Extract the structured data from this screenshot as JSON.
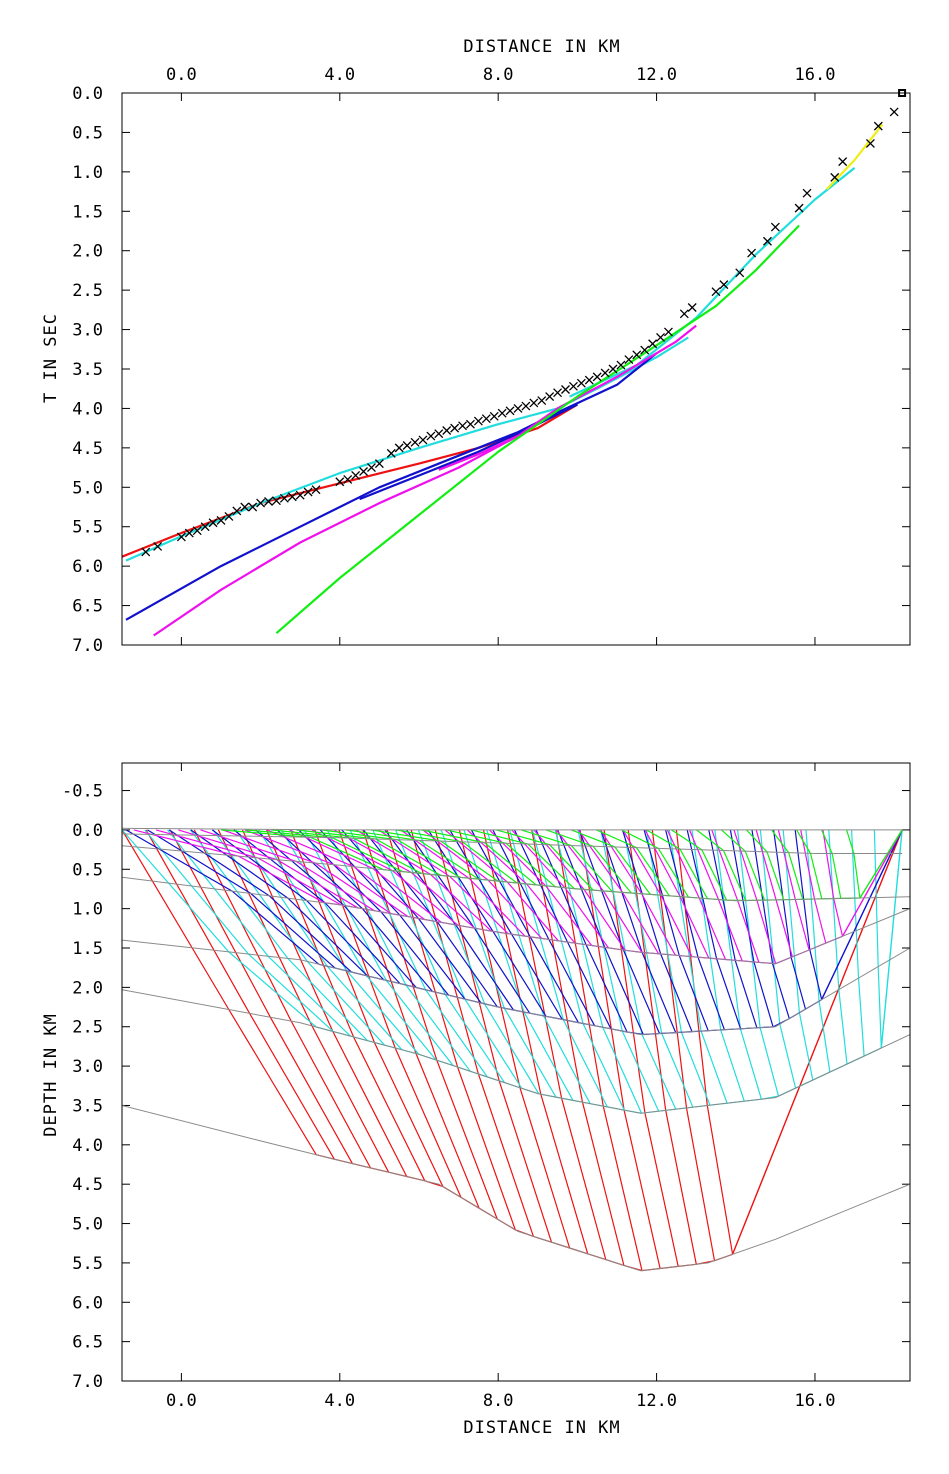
{
  "colors": {
    "frame": "#000000",
    "interface": "#8a8a8a",
    "red": "#ee1111",
    "cyan": "#22dddd",
    "blue": "#1111cc",
    "magenta": "#ee11ee",
    "green": "#11ee11",
    "yellow": "#eeee11",
    "pick": "#000000"
  },
  "chart_data": [
    {
      "type": "line",
      "title": "",
      "xlabel": "DISTANCE IN KM",
      "ylabel": "T IN SEC",
      "xlim": [
        -1.5,
        18.4
      ],
      "ylim": [
        7.0,
        0.0
      ],
      "y_inverted": true,
      "x_axis_position": "top",
      "x_ticks": [
        0,
        4,
        8,
        12,
        16
      ],
      "x_tick_labels": [
        "0.0",
        "4.0",
        "8.0",
        "12.0",
        "16.0"
      ],
      "y_ticks": [
        0,
        0.5,
        1,
        1.5,
        2,
        2.5,
        3,
        3.5,
        4,
        4.5,
        5,
        5.5,
        6,
        6.5,
        7
      ],
      "y_tick_labels": [
        "0.0",
        "0.5",
        "1.0",
        "1.5",
        "2.0",
        "2.5",
        "3.0",
        "3.5",
        "4.0",
        "4.5",
        "5.0",
        "5.5",
        "6.0",
        "6.5",
        "7.0"
      ],
      "grid": false,
      "series": [
        {
          "color_key": "red",
          "points": [
            [
              -1.5,
              5.88
            ],
            [
              0.0,
              5.58
            ],
            [
              2.0,
              5.2
            ],
            [
              4.0,
              4.95
            ],
            [
              6.0,
              4.7
            ],
            [
              7.5,
              4.5
            ],
            [
              9.0,
              4.25
            ],
            [
              10.0,
              3.95
            ]
          ]
        },
        {
          "color_key": "cyan",
          "points": [
            [
              -1.4,
              5.93
            ],
            [
              0.0,
              5.62
            ],
            [
              2.0,
              5.2
            ],
            [
              4.0,
              4.82
            ],
            [
              6.0,
              4.5
            ],
            [
              8.0,
              4.2
            ],
            [
              9.5,
              4.0
            ],
            [
              10.5,
              3.75
            ],
            [
              12.0,
              3.35
            ],
            [
              12.8,
              3.1
            ]
          ]
        },
        {
          "color_key": "cyan",
          "points": [
            [
              9.8,
              3.85
            ],
            [
              11.5,
              3.45
            ],
            [
              13.0,
              2.85
            ],
            [
              14.5,
              2.05
            ],
            [
              16.0,
              1.35
            ],
            [
              17.0,
              0.95
            ]
          ]
        },
        {
          "color_key": "blue",
          "points": [
            [
              -1.4,
              6.68
            ],
            [
              1.0,
              6.0
            ],
            [
              3.0,
              5.5
            ],
            [
              5.0,
              5.0
            ],
            [
              7.0,
              4.6
            ],
            [
              8.5,
              4.3
            ],
            [
              9.5,
              4.05
            ],
            [
              11.0,
              3.7
            ],
            [
              12.0,
              3.3
            ]
          ]
        },
        {
          "color_key": "blue",
          "points": [
            [
              4.5,
              5.15
            ],
            [
              6.0,
              4.85
            ],
            [
              7.5,
              4.55
            ],
            [
              9.0,
              4.2
            ],
            [
              10.0,
              3.95
            ]
          ]
        },
        {
          "color_key": "magenta",
          "points": [
            [
              -0.7,
              6.88
            ],
            [
              1.0,
              6.3
            ],
            [
              3.0,
              5.7
            ],
            [
              5.0,
              5.2
            ],
            [
              7.0,
              4.75
            ],
            [
              8.5,
              4.35
            ],
            [
              9.5,
              4.0
            ],
            [
              11.0,
              3.6
            ],
            [
              12.5,
              3.15
            ],
            [
              13.0,
              2.95
            ]
          ]
        },
        {
          "color_key": "magenta",
          "points": [
            [
              6.5,
              4.78
            ],
            [
              7.5,
              4.58
            ],
            [
              8.5,
              4.35
            ]
          ]
        },
        {
          "color_key": "green",
          "points": [
            [
              2.4,
              6.85
            ],
            [
              4.0,
              6.15
            ],
            [
              6.0,
              5.35
            ],
            [
              8.0,
              4.55
            ],
            [
              10.0,
              3.85
            ],
            [
              12.0,
              3.2
            ],
            [
              13.5,
              2.7
            ],
            [
              14.5,
              2.25
            ],
            [
              15.6,
              1.68
            ]
          ]
        },
        {
          "color_key": "yellow",
          "points": [
            [
              16.3,
              1.22
            ],
            [
              17.0,
              0.85
            ],
            [
              17.7,
              0.4
            ]
          ]
        }
      ],
      "picks": [
        [
          -0.9,
          5.82
        ],
        [
          -0.6,
          5.75
        ],
        [
          0.0,
          5.63
        ],
        [
          0.2,
          5.58
        ],
        [
          0.4,
          5.55
        ],
        [
          0.6,
          5.5
        ],
        [
          0.8,
          5.45
        ],
        [
          1.0,
          5.42
        ],
        [
          1.2,
          5.37
        ],
        [
          1.4,
          5.3
        ],
        [
          1.6,
          5.25
        ],
        [
          1.8,
          5.25
        ],
        [
          2.0,
          5.2
        ],
        [
          2.2,
          5.18
        ],
        [
          2.4,
          5.17
        ],
        [
          2.6,
          5.14
        ],
        [
          2.8,
          5.12
        ],
        [
          3.0,
          5.1
        ],
        [
          3.2,
          5.06
        ],
        [
          3.4,
          5.03
        ],
        [
          4.0,
          4.93
        ],
        [
          4.2,
          4.9
        ],
        [
          4.4,
          4.85
        ],
        [
          4.6,
          4.8
        ],
        [
          4.8,
          4.75
        ],
        [
          5.0,
          4.7
        ],
        [
          5.3,
          4.57
        ],
        [
          5.5,
          4.5
        ],
        [
          5.7,
          4.47
        ],
        [
          5.9,
          4.43
        ],
        [
          6.1,
          4.4
        ],
        [
          6.3,
          4.35
        ],
        [
          6.5,
          4.32
        ],
        [
          6.7,
          4.28
        ],
        [
          6.9,
          4.25
        ],
        [
          7.1,
          4.22
        ],
        [
          7.3,
          4.2
        ],
        [
          7.5,
          4.16
        ],
        [
          7.7,
          4.13
        ],
        [
          7.9,
          4.1
        ],
        [
          8.1,
          4.06
        ],
        [
          8.3,
          4.03
        ],
        [
          8.5,
          4.0
        ],
        [
          8.7,
          3.97
        ],
        [
          8.9,
          3.93
        ],
        [
          9.1,
          3.9
        ],
        [
          9.3,
          3.85
        ],
        [
          9.5,
          3.8
        ],
        [
          9.7,
          3.76
        ],
        [
          9.9,
          3.72
        ],
        [
          10.1,
          3.68
        ],
        [
          10.3,
          3.64
        ],
        [
          10.5,
          3.6
        ],
        [
          10.7,
          3.55
        ],
        [
          10.9,
          3.5
        ],
        [
          11.1,
          3.45
        ],
        [
          11.3,
          3.38
        ],
        [
          11.5,
          3.32
        ],
        [
          11.7,
          3.26
        ],
        [
          11.9,
          3.18
        ],
        [
          12.1,
          3.1
        ],
        [
          12.3,
          3.03
        ],
        [
          12.7,
          2.8
        ],
        [
          12.9,
          2.72
        ],
        [
          13.5,
          2.52
        ],
        [
          13.7,
          2.43
        ],
        [
          14.1,
          2.28
        ],
        [
          14.4,
          2.03
        ],
        [
          14.8,
          1.88
        ],
        [
          15.0,
          1.7
        ],
        [
          15.6,
          1.46
        ],
        [
          15.8,
          1.27
        ],
        [
          16.5,
          1.07
        ],
        [
          16.7,
          0.87
        ],
        [
          17.4,
          0.64
        ],
        [
          17.6,
          0.42
        ],
        [
          18.0,
          0.24
        ]
      ],
      "source_marker": [
        18.2,
        0.0
      ]
    },
    {
      "type": "line",
      "title": "",
      "xlabel": "DISTANCE IN KM",
      "ylabel": "DEPTH IN KM",
      "xlim": [
        -1.5,
        18.4
      ],
      "ylim": [
        7.0,
        -0.85
      ],
      "y_inverted": true,
      "x_axis_position": "bottom",
      "x_ticks": [
        0,
        4,
        8,
        12,
        16
      ],
      "x_tick_labels": [
        "0.0",
        "4.0",
        "8.0",
        "12.0",
        "16.0"
      ],
      "y_ticks": [
        -0.5,
        0,
        0.5,
        1,
        1.5,
        2,
        2.5,
        3,
        3.5,
        4,
        4.5,
        5,
        5.5,
        6,
        6.5,
        7
      ],
      "y_tick_labels": [
        "-0.5",
        "0.0",
        "0.5",
        "1.0",
        "1.5",
        "2.0",
        "2.5",
        "3.0",
        "3.5",
        "4.0",
        "4.5",
        "5.0",
        "5.5",
        "6.0",
        "6.5",
        "7.0"
      ],
      "grid": false,
      "source": [
        18.2,
        0.0
      ],
      "interfaces": [
        [
          [
            -1.5,
            -0.02
          ],
          [
            4.0,
            0.0
          ],
          [
            10.0,
            0.0
          ],
          [
            18.2,
            0.0
          ]
        ],
        [
          [
            -1.5,
            0.05
          ],
          [
            4.0,
            0.1
          ],
          [
            10.0,
            0.2
          ],
          [
            16.0,
            0.3
          ],
          [
            18.2,
            0.3
          ]
        ],
        [
          [
            -1.5,
            0.2
          ],
          [
            4.0,
            0.45
          ],
          [
            10.0,
            0.75
          ],
          [
            14.0,
            0.9
          ],
          [
            18.4,
            0.85
          ]
        ],
        [
          [
            -1.5,
            0.6
          ],
          [
            4.0,
            0.95
          ],
          [
            8.0,
            1.3
          ],
          [
            11.5,
            1.55
          ],
          [
            15.0,
            1.7
          ],
          [
            18.4,
            1.0
          ]
        ],
        [
          [
            -1.5,
            1.4
          ],
          [
            3.0,
            1.65
          ],
          [
            8.0,
            2.25
          ],
          [
            11.6,
            2.6
          ],
          [
            15.0,
            2.5
          ],
          [
            18.4,
            1.5
          ]
        ],
        [
          [
            -1.5,
            2.03
          ],
          [
            3.0,
            2.45
          ],
          [
            6.0,
            2.85
          ],
          [
            9.0,
            3.35
          ],
          [
            11.6,
            3.6
          ],
          [
            15.0,
            3.4
          ],
          [
            18.4,
            2.6
          ]
        ],
        [
          [
            -1.5,
            3.5
          ],
          [
            2.0,
            3.95
          ],
          [
            4.0,
            4.2
          ],
          [
            6.5,
            4.5
          ],
          [
            8.5,
            5.1
          ],
          [
            11.6,
            5.6
          ],
          [
            13.3,
            5.5
          ],
          [
            15.0,
            5.2
          ],
          [
            18.4,
            4.5
          ]
        ]
      ],
      "ray_families": [
        {
          "color_key": "red",
          "launch_x": [
            -1.5,
            12.5
          ],
          "count": 24,
          "layer": 6
        },
        {
          "color_key": "cyan",
          "launch_x": [
            -1.5,
            17.5
          ],
          "count": 34,
          "layer": 5
        },
        {
          "color_key": "blue",
          "launch_x": [
            -1.4,
            15.5
          ],
          "count": 32,
          "layer": 4
        },
        {
          "color_key": "magenta",
          "launch_x": [
            -1.2,
            16.2
          ],
          "count": 32,
          "layer": 3
        },
        {
          "color_key": "green",
          "launch_x": [
            1.0,
            16.8
          ],
          "count": 26,
          "layer": 2
        }
      ]
    }
  ]
}
